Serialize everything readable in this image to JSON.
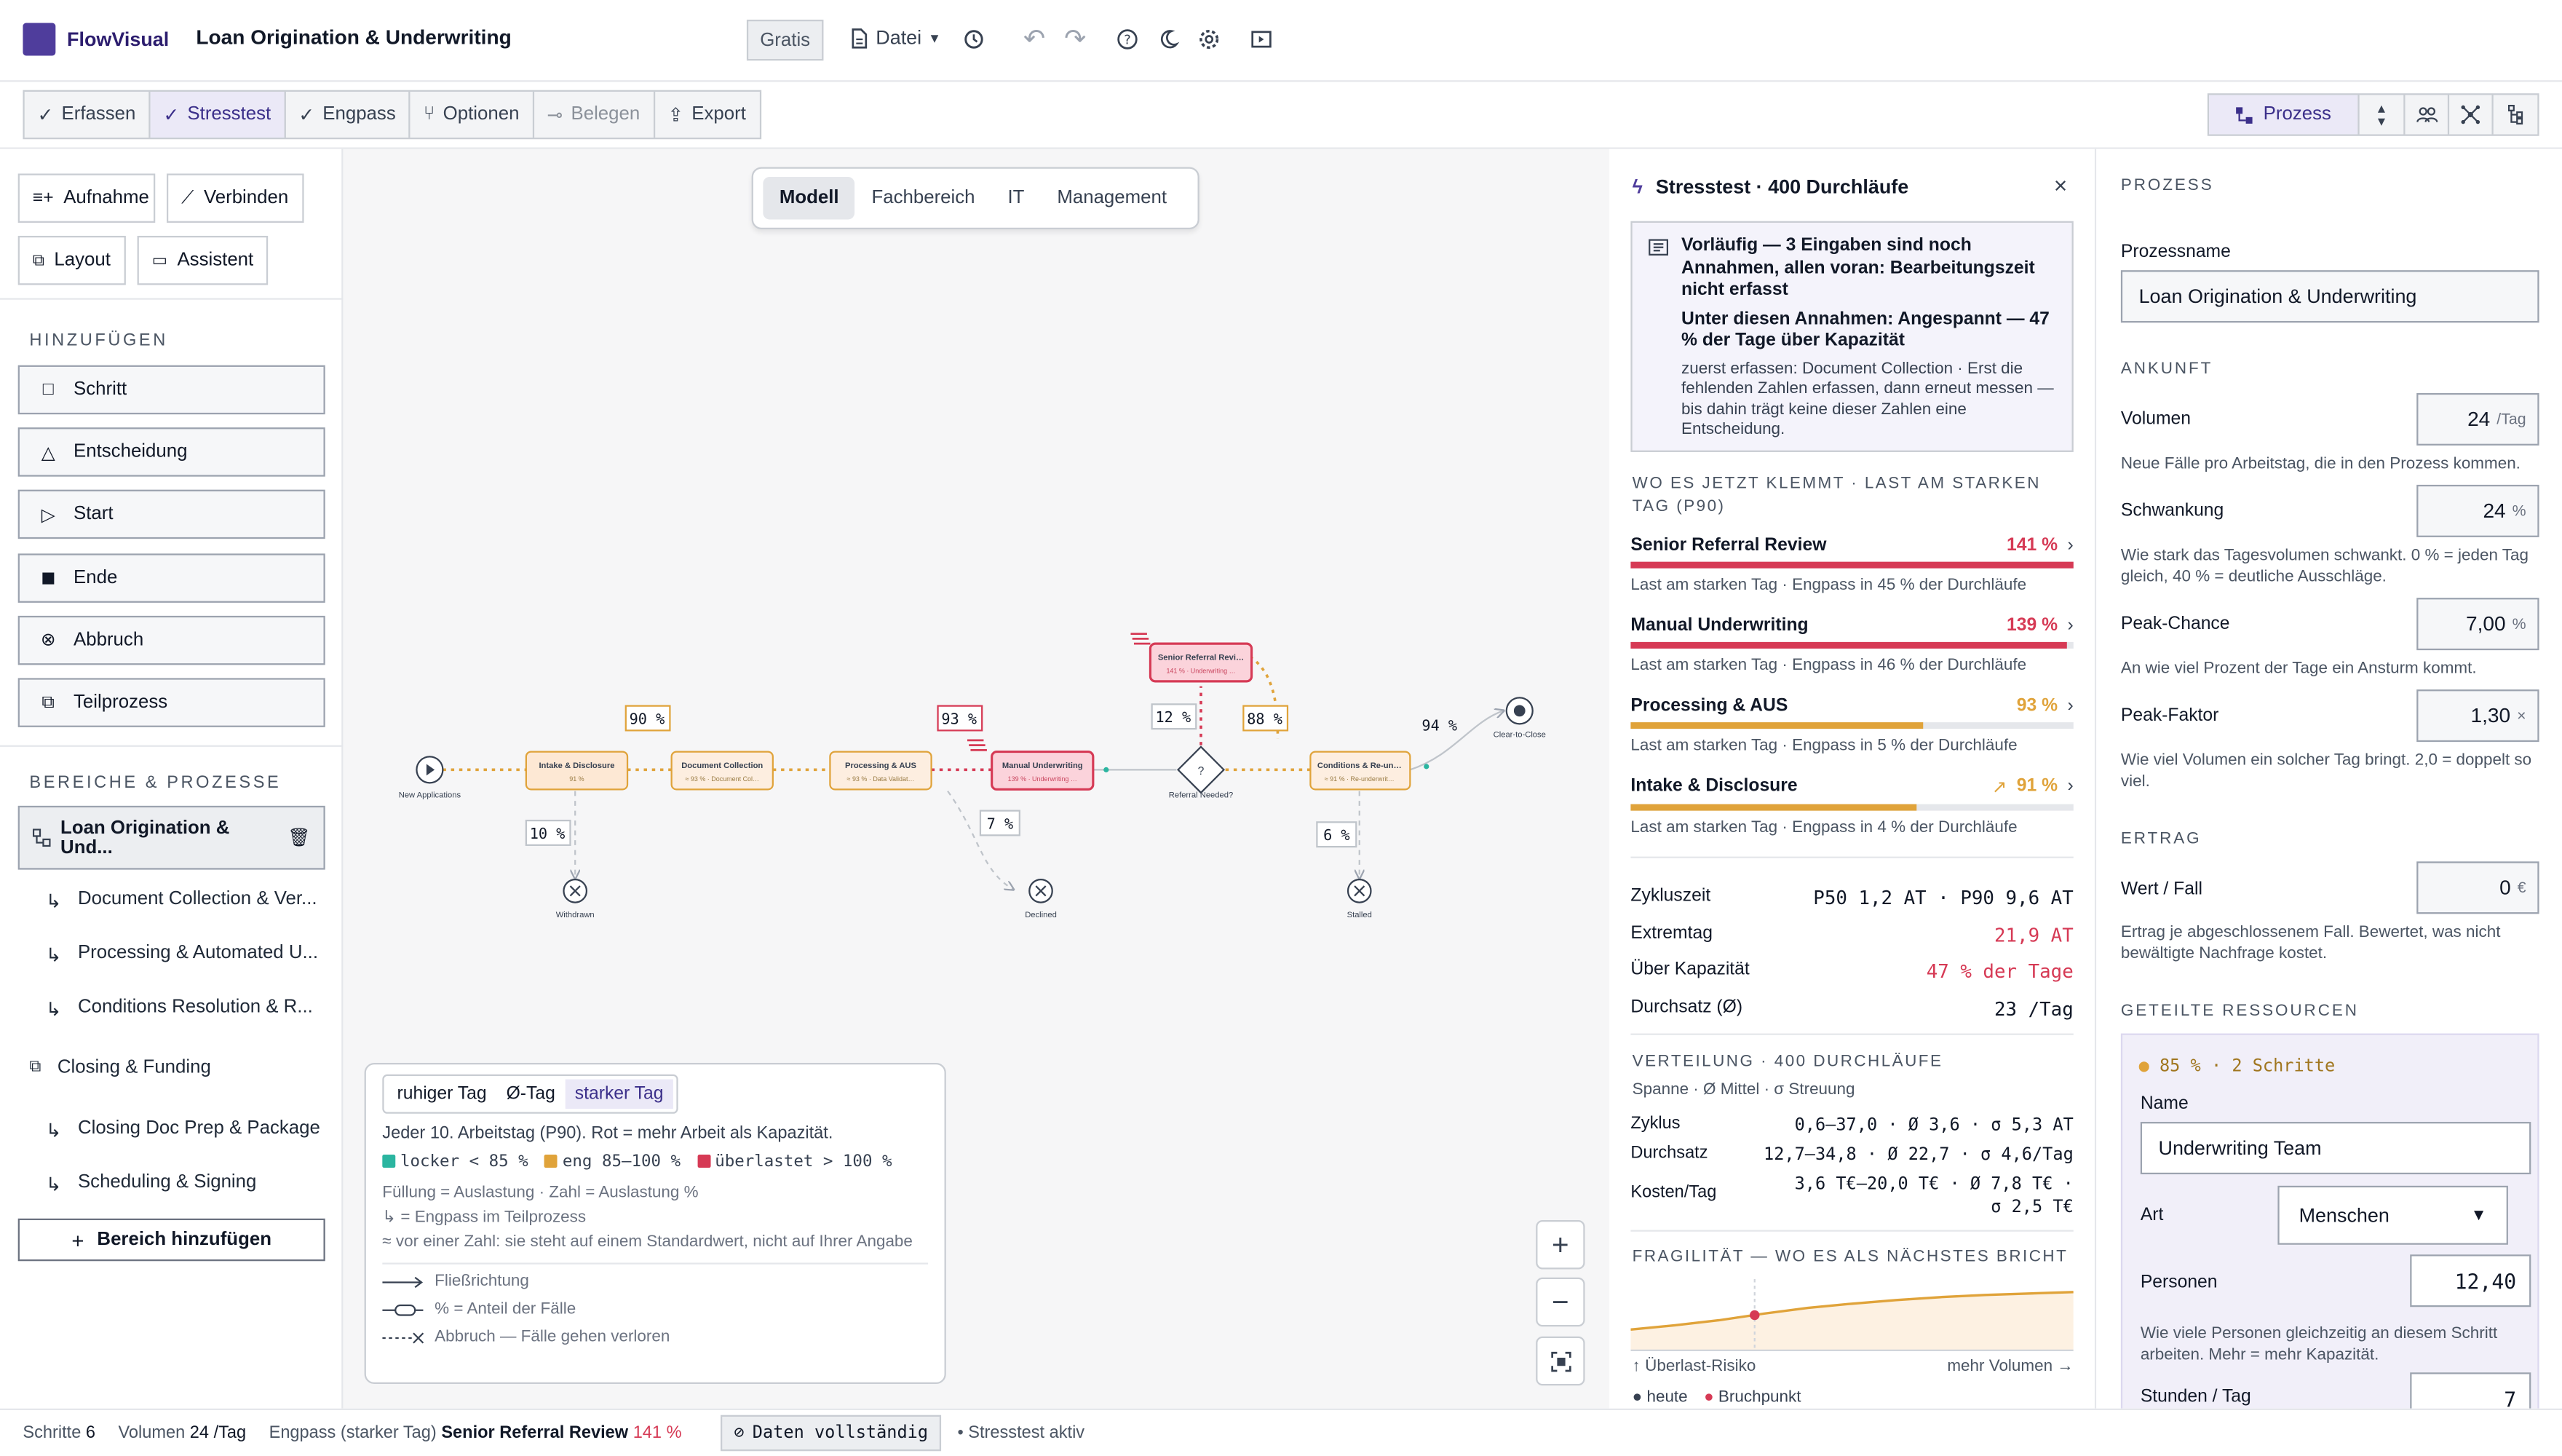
{
  "app": {
    "brand": "FlowVisual",
    "title": "Loan Origination & Underwriting",
    "plan_badge": "Gratis",
    "file_menu": "Datei"
  },
  "toolbar": {
    "modes": [
      {
        "label": "Erfassen",
        "icon": "check-icon",
        "active": false
      },
      {
        "label": "Stresstest",
        "icon": "check-icon",
        "active": true
      },
      {
        "label": "Engpass",
        "icon": "check-icon",
        "active": false
      },
      {
        "label": "Optionen",
        "icon": "fork-icon",
        "active": false
      },
      {
        "label": "Belegen",
        "icon": "branch-icon",
        "active": false
      },
      {
        "label": "Export",
        "icon": "share-icon",
        "active": false
      }
    ],
    "view_selected": "Prozess"
  },
  "sidebar": {
    "tools": [
      "Aufnahme",
      "Verbinden",
      "Layout",
      "Assistent"
    ],
    "add_section": "HINZUFÜGEN",
    "add_items": [
      {
        "label": "Schritt",
        "icon": "square-icon"
      },
      {
        "label": "Entscheidung",
        "icon": "triangle-icon"
      },
      {
        "label": "Start",
        "icon": "play-circle-icon"
      },
      {
        "label": "Ende",
        "icon": "stop-circle-icon"
      },
      {
        "label": "Abbruch",
        "icon": "x-circle-icon"
      },
      {
        "label": "Teilprozess",
        "icon": "subprocess-icon"
      }
    ],
    "areas_section": "BEREICHE & PROZESSE",
    "selected_process": "Loan Origination & Und...",
    "sub_processes": [
      "Document Collection & Ver...",
      "Processing & Automated U...",
      "Conditions Resolution & R..."
    ],
    "area2": "Closing & Funding",
    "area2_subs": [
      "Closing Doc Prep & Package",
      "Scheduling & Signing"
    ],
    "add_area": "Bereich hinzufügen"
  },
  "canvas": {
    "view_tabs": [
      "Modell",
      "Fachbereich",
      "IT",
      "Management"
    ],
    "nodes": {
      "start": "New Applications",
      "intake": "Intake & Disclosure",
      "intake_sub": "91 %",
      "doc": "Document Collection",
      "doc_sub": "≈ 93 % · Document Col…",
      "proc": "Processing & AUS",
      "proc_sub": "≈ 93 % · Data Validat…",
      "uw": "Manual Underwriting",
      "uw_sub": "139 % · Underwriting …",
      "dec": "?",
      "dec_label": "Referral Needed?",
      "srr": "Senior Referral Revi…",
      "srr_sub": "141 % · Underwriting …",
      "cond": "Conditions & Re-un…",
      "cond_sub": "≈ 91 % · Re-underwrit…",
      "end": "Clear-to-Close",
      "withdrawn": "Withdrawn",
      "declined": "Declined",
      "stalled": "Stalled"
    },
    "edge_labels": {
      "p90": "90 %",
      "p93": "93 %",
      "p12": "12 %",
      "p88": "88 %",
      "p94": "94 %",
      "p10": "10 %",
      "p7": "7 %",
      "p6": "6 %"
    },
    "legend": {
      "tabs": [
        "ruhiger Tag",
        "Ø-Tag",
        "starker Tag"
      ],
      "selected_tab": "starker Tag",
      "desc": "Jeder 10. Arbeitstag (P90). Rot = mehr Arbeit als Kapazität.",
      "levels": [
        {
          "label": "locker < 85 %",
          "color": "#2bb5a0"
        },
        {
          "label": "eng 85–100 %",
          "color": "#e0a33a"
        },
        {
          "label": "überlastet > 100 %",
          "color": "#d63a55"
        }
      ],
      "note1": "Füllung = Auslastung · Zahl = Auslastung %",
      "note2": "↳ = Engpass im Teilprozess",
      "note3": "≈ vor einer Zahl: sie steht auf einem Standardwert, nicht auf Ihrer Angabe",
      "flow": "Fließrichtung",
      "share": "% = Anteil der Fälle",
      "abort": "Abbruch — Fälle gehen verloren"
    }
  },
  "stress": {
    "title": "Stresstest · 400 Durchläufe",
    "note_h1": "Vorläufig — 3 Eingaben sind noch Annahmen, allen voran: Bearbeitungszeit nicht erfasst",
    "note_h2": "Unter diesen Annahmen: Angespannt — 47 % der Tage über Kapazität",
    "note_text": "zuerst erfassen: Document Collection · Erst die fehlenden Zahlen erfassen, dann erneut messen — bis dahin trägt keine dieser Zahlen eine Entscheidung.",
    "bottleneck_header": "WO ES JETZT KLEMMT · LAST AM STARKEN TAG (P90)",
    "bottlenecks": [
      {
        "name": "Senior Referral Review",
        "value": "141 %",
        "load": 1.41,
        "color": "#d63a55",
        "caption": "Last am starken Tag · Engpass in 45 % der Durchläufe"
      },
      {
        "name": "Manual Underwriting",
        "value": "139 %",
        "load": 1.39,
        "color": "#d63a55",
        "caption": "Last am starken Tag · Engpass in 46 % der Durchläufe"
      },
      {
        "name": "Processing & AUS",
        "value": "93 %",
        "load": 0.93,
        "color": "#e0a33a",
        "caption": "Last am starken Tag · Engpass in 5 % der Durchläufe"
      },
      {
        "name": "Intake & Disclosure",
        "value": "91 %",
        "load": 0.91,
        "color": "#e0a33a",
        "caption": "Last am starken Tag · Engpass in 4 % der Durchläufe"
      }
    ],
    "kpis": [
      {
        "label": "Zykluszeit",
        "value": "P50 1,2 AT · P90 9,6 AT",
        "red": false
      },
      {
        "label": "Extremtag",
        "value": "21,9 AT",
        "red": true
      },
      {
        "label": "Über Kapazität",
        "value": "47 % der Tage",
        "red": true
      },
      {
        "label": "Durchsatz (Ø)",
        "value": "23 /Tag",
        "red": false
      }
    ],
    "dist_header": "VERTEILUNG · 400 DURCHLÄUFE",
    "dist_sub": "Spanne · Ø Mittel · σ Streuung",
    "dist": [
      {
        "label": "Zyklus",
        "value": "0,6–37,0 · Ø 3,6 · σ 5,3 AT"
      },
      {
        "label": "Durchsatz",
        "value": "12,7–34,8 · Ø 22,7 · σ 4,6/Tag"
      },
      {
        "label": "Kosten/Tag",
        "value": "3,6 T€–20,0 T€ · Ø 7,8 T€ ·",
        "value2": "σ 2,5 T€"
      }
    ],
    "frag_header": "FRAGILITÄT — WO ES ALS NÄCHSTES BRICHT",
    "frag_y": "↑ Überlast-Risiko",
    "frag_x": "mehr Volumen →",
    "frag_legend": [
      {
        "label": "heute",
        "color": "#374151"
      },
      {
        "label": "Bruchpunkt",
        "color": "#d63a55"
      }
    ],
    "frag_points": [
      [
        0,
        0.3
      ],
      [
        0.1,
        0.36
      ],
      [
        0.2,
        0.43
      ],
      [
        0.3,
        0.52
      ],
      [
        0.4,
        0.6
      ],
      [
        0.5,
        0.66
      ],
      [
        0.6,
        0.71
      ],
      [
        0.7,
        0.75
      ],
      [
        0.8,
        0.78
      ],
      [
        0.9,
        0.8
      ],
      [
        1.0,
        0.82
      ]
    ],
    "frag_break": [
      0.28,
      0.5
    ]
  },
  "process": {
    "section": "PROZESS",
    "name_label": "Prozessname",
    "name_value": "Loan Origination & Underwriting",
    "arrival": "ANKUNFT",
    "volume_label": "Volumen",
    "volume_value": "24",
    "volume_unit": "/Tag",
    "volume_help": "Neue Fälle pro Arbeitstag, die in den Prozess kommen.",
    "var_label": "Schwankung",
    "var_value": "24",
    "var_unit": "%",
    "var_help": "Wie stark das Tagesvolumen schwankt. 0 % = jeden Tag gleich, 40 % = deutliche Ausschläge.",
    "peak_label": "Peak-Chance",
    "peak_value": "7,00",
    "peak_unit": "%",
    "peak_help": "An wie viel Prozent der Tage ein Ansturm kommt.",
    "pf_label": "Peak-Faktor",
    "pf_value": "1,30",
    "pf_unit": "×",
    "pf_help": "Wie viel Volumen ein solcher Tag bringt. 2,0 = doppelt so viel.",
    "yield": "ERTRAG",
    "val_label": "Wert / Fall",
    "val_value": "0",
    "val_unit": "€",
    "val_help": "Ertrag je abgeschlossenem Fall. Bewertet, was nicht bewältigte Nachfrage kostet.",
    "shared": "GETEILTE RESSOURCEN",
    "res_tag": "85 % · 2 Schritte",
    "res_name_label": "Name",
    "res_name_value": "Underwriting Team",
    "res_type_label": "Art",
    "res_type_value": "Menschen",
    "res_persons_label": "Personen",
    "res_persons_value": "12,40",
    "res_persons_help": "Wie viele Personen gleichzeitig an diesem Schritt arbeiten. Mehr = mehr Kapazität.",
    "res_hours_label": "Stunden / Tag",
    "res_hours_value": "7"
  },
  "status": {
    "steps_label": "Schritte",
    "steps_value": "6",
    "vol_label": "Volumen",
    "vol_value": "24",
    "vol_unit": "/Tag",
    "bn_label": "Engpass (starker Tag)",
    "bn_name": "Senior Referral Review",
    "bn_value": "141 %",
    "complete": "Daten vollständig",
    "stress": "• Stresstest aktiv"
  },
  "colors": {
    "accent": "#4f3d9c",
    "overload": "#d63a55",
    "tight": "#e0a33a",
    "ok": "#2bb5a0"
  }
}
